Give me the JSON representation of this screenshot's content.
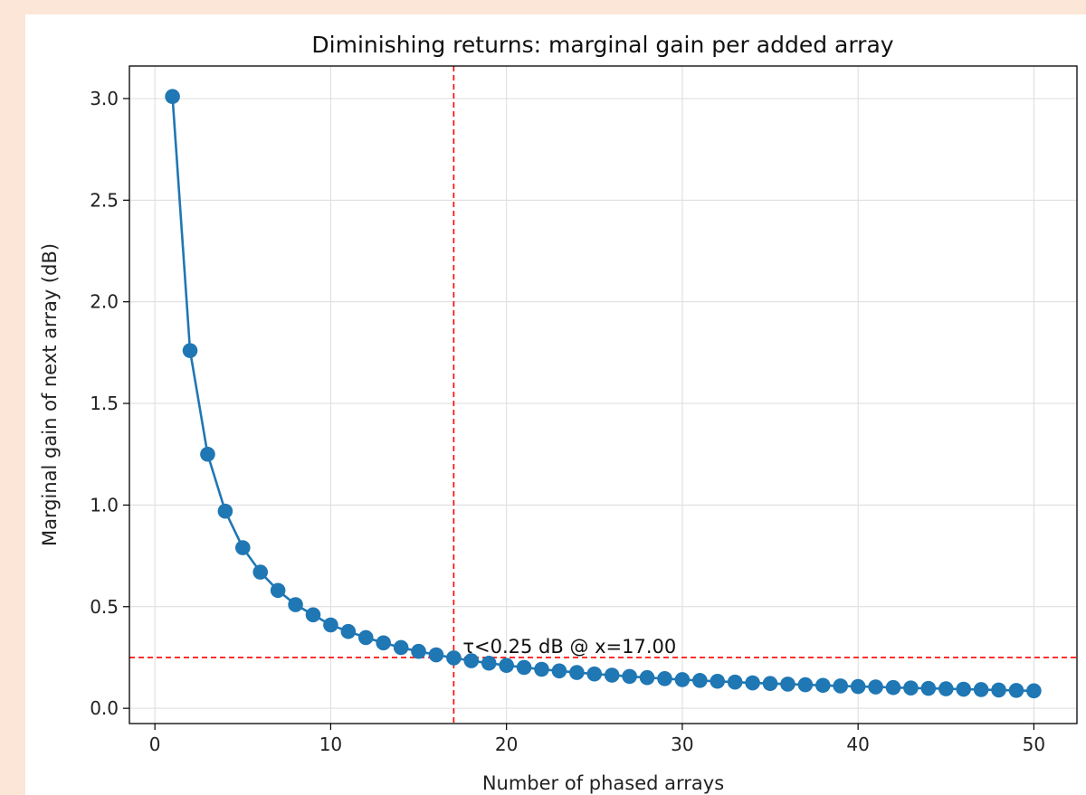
{
  "chart_data": {
    "type": "line",
    "title": "Diminishing returns: marginal gain per added array",
    "xlabel": "Number of phased arrays",
    "ylabel": "Marginal gain of next array (dB)",
    "xlim": [
      -1.45,
      52.45
    ],
    "ylim": [
      -0.075,
      3.16
    ],
    "xticks": [
      0,
      10,
      20,
      30,
      40,
      50
    ],
    "yticks": [
      0.0,
      0.5,
      1.0,
      1.5,
      2.0,
      2.5,
      3.0
    ],
    "xtick_labels": [
      "0",
      "10",
      "20",
      "30",
      "40",
      "50"
    ],
    "ytick_labels": [
      "0.0",
      "0.5",
      "1.0",
      "1.5",
      "2.0",
      "2.5",
      "3.0"
    ],
    "grid": true,
    "series": [
      {
        "color": "#1f77b4",
        "marker": "circle",
        "x": [
          1,
          2,
          3,
          4,
          5,
          6,
          7,
          8,
          9,
          10,
          11,
          12,
          13,
          14,
          15,
          16,
          17,
          18,
          19,
          20,
          21,
          22,
          23,
          24,
          25,
          26,
          27,
          28,
          29,
          30,
          31,
          32,
          33,
          34,
          35,
          36,
          37,
          38,
          39,
          40,
          41,
          42,
          43,
          44,
          45,
          46,
          47,
          48,
          49,
          50
        ],
        "y": [
          3.01,
          1.76,
          1.25,
          0.97,
          0.79,
          0.67,
          0.58,
          0.51,
          0.46,
          0.41,
          0.378,
          0.348,
          0.322,
          0.299,
          0.28,
          0.263,
          0.248,
          0.234,
          0.222,
          0.211,
          0.201,
          0.192,
          0.184,
          0.176,
          0.169,
          0.163,
          0.157,
          0.151,
          0.146,
          0.141,
          0.137,
          0.133,
          0.129,
          0.125,
          0.122,
          0.119,
          0.116,
          0.113,
          0.11,
          0.107,
          0.105,
          0.102,
          0.1,
          0.098,
          0.096,
          0.094,
          0.092,
          0.09,
          0.088,
          0.086
        ]
      }
    ],
    "threshold": {
      "x": 17,
      "y": 0.25,
      "color": "#ff0000",
      "style": "dashed",
      "label": "τ<0.25 dB @ x=17.00"
    }
  }
}
